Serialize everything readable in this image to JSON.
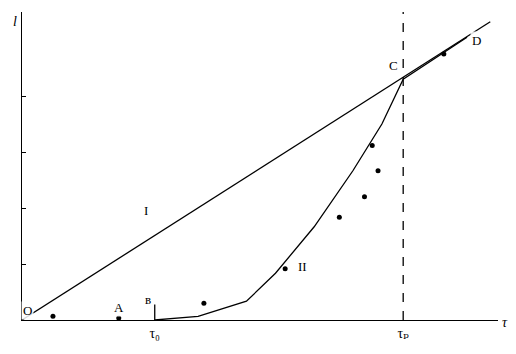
{
  "chart_data": {
    "type": "line",
    "x_label": "τ",
    "y_label": "l",
    "xlim": [
      0,
      12.3
    ],
    "ylim": [
      0,
      11
    ],
    "xticks": [
      {
        "value": 3.43,
        "label": "τ₀"
      },
      {
        "value": 9.85,
        "label": "τₚ"
      }
    ],
    "yticks": [
      2,
      4,
      6,
      8
    ],
    "tick_labels": "x",
    "grid": false,
    "series": [
      {
        "type": "line",
        "color": "#000000",
        "line_style": "solid",
        "x": [
          0,
          12.1
        ],
        "values": [
          0,
          10.65
        ]
      },
      {
        "type": "line",
        "color": "#000000",
        "line_style": "solid",
        "x": [
          3.43,
          4.55,
          5.8,
          6.55,
          7.55,
          8.55,
          9.3,
          9.85,
          11.5
        ],
        "values": [
          0,
          0.13,
          0.67,
          1.67,
          3.33,
          5.33,
          7.0,
          8.6,
          10.1
        ]
      },
      {
        "type": "scatter",
        "color": "#000000",
        "marker": "circle",
        "x": [
          0.8,
          2.5,
          4.7,
          6.8,
          8.2,
          8.85,
          9.05,
          9.2,
          10.9
        ],
        "values": [
          0.13,
          0.07,
          0.6,
          1.83,
          3.67,
          4.4,
          6.23,
          5.33,
          9.5
        ]
      },
      {
        "type": "line",
        "color": "#000000",
        "line_style": "dash",
        "x": [
          9.85,
          9.85
        ],
        "values": [
          0,
          11
        ]
      },
      {
        "type": "line",
        "color": "#000000",
        "line_style": "solid",
        "x": [
          3.43,
          3.43
        ],
        "values": [
          0,
          0.55
        ]
      }
    ],
    "annotations": [
      {
        "text": "I",
        "x": 3.2,
        "y": 3.9
      },
      {
        "text": "II",
        "x": 7.25,
        "y": 1.9
      },
      {
        "text": "O",
        "x": 0.15,
        "y": 0.35
      },
      {
        "text": "A",
        "x": 2.5,
        "y": 0.45
      },
      {
        "text": "в",
        "x": 3.25,
        "y": 0.75
      },
      {
        "text": "C",
        "x": 9.6,
        "y": 9.1
      },
      {
        "text": "D",
        "x": 11.75,
        "y": 10.0
      }
    ]
  }
}
